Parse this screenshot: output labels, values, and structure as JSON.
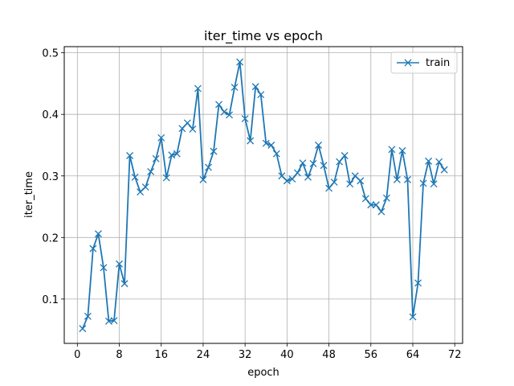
{
  "chart_data": {
    "type": "line",
    "title": "iter_time vs epoch",
    "xlabel": "epoch",
    "ylabel": "iter_time",
    "xlim": [
      -2.5,
      73.5
    ],
    "ylim": [
      0.028,
      0.51
    ],
    "xticks": [
      0,
      8,
      16,
      24,
      32,
      40,
      48,
      56,
      64,
      72
    ],
    "yticks": [
      0.1,
      0.2,
      0.3,
      0.4,
      0.5
    ],
    "ytick_labels": [
      "0.1",
      "0.2",
      "0.3",
      "0.4",
      "0.5"
    ],
    "grid": true,
    "legend": "top-right",
    "series": [
      {
        "name": "train",
        "color": "#1f77b4",
        "marker": "x",
        "x": [
          1,
          2,
          3,
          4,
          5,
          6,
          7,
          8,
          9,
          10,
          11,
          12,
          13,
          14,
          15,
          16,
          17,
          18,
          19,
          20,
          21,
          22,
          23,
          24,
          25,
          26,
          27,
          28,
          29,
          30,
          31,
          32,
          33,
          34,
          35,
          36,
          37,
          38,
          39,
          40,
          41,
          42,
          43,
          44,
          45,
          46,
          47,
          48,
          49,
          50,
          51,
          52,
          53,
          54,
          55,
          56,
          57,
          58,
          59,
          60,
          61,
          62,
          63,
          64,
          65,
          66,
          67,
          68,
          69,
          70
        ],
        "values": [
          0.052,
          0.072,
          0.182,
          0.206,
          0.151,
          0.064,
          0.065,
          0.157,
          0.125,
          0.333,
          0.298,
          0.274,
          0.282,
          0.307,
          0.328,
          0.362,
          0.297,
          0.334,
          0.336,
          0.377,
          0.386,
          0.376,
          0.442,
          0.294,
          0.314,
          0.34,
          0.416,
          0.404,
          0.399,
          0.444,
          0.485,
          0.393,
          0.357,
          0.445,
          0.432,
          0.353,
          0.35,
          0.336,
          0.3,
          0.292,
          0.295,
          0.305,
          0.321,
          0.298,
          0.32,
          0.35,
          0.317,
          0.28,
          0.29,
          0.323,
          0.333,
          0.287,
          0.3,
          0.292,
          0.263,
          0.253,
          0.253,
          0.242,
          0.264,
          0.343,
          0.294,
          0.341,
          0.294,
          0.071,
          0.126,
          0.288,
          0.324,
          0.287,
          0.323,
          0.31
        ]
      }
    ]
  }
}
